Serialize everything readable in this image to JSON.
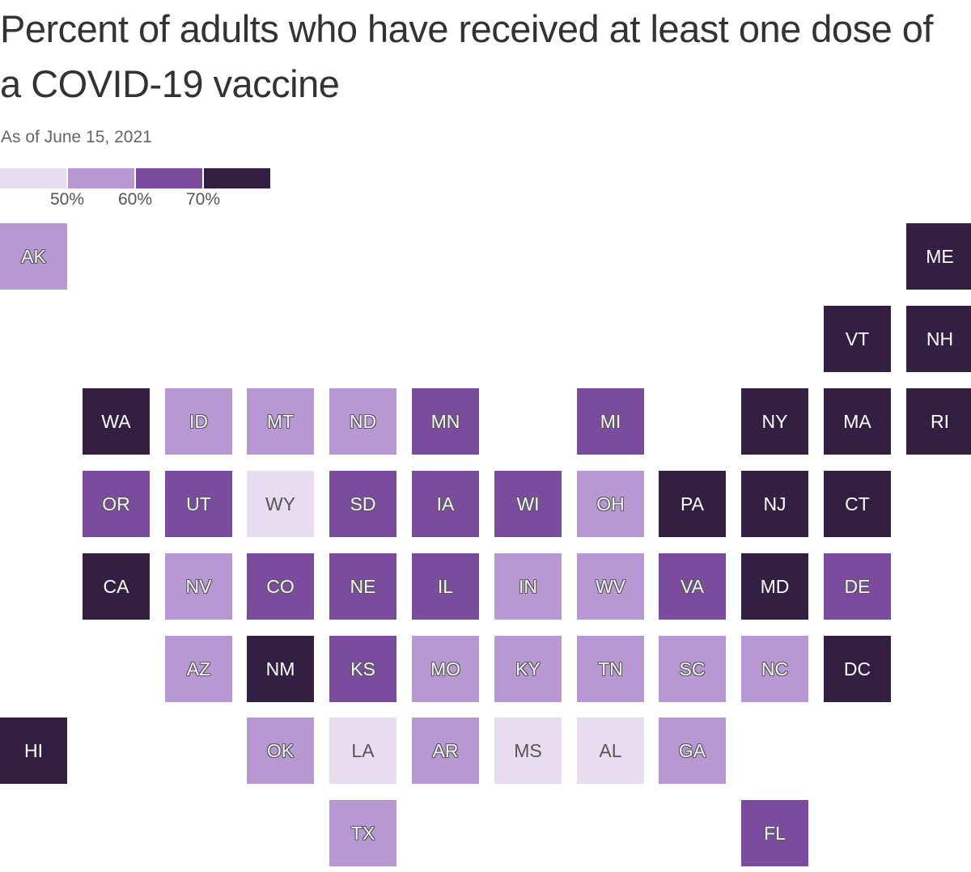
{
  "title": "Percent of adults who have received at least one dose of a COVID-19 vaccine",
  "subtitle": "As of June 15, 2021",
  "colors": {
    "bin1": "#e8dcf0",
    "bin2": "#b898d2",
    "bin3": "#7b4b9e",
    "bin4": "#331f42"
  },
  "legend": {
    "bins": [
      "bin1",
      "bin2",
      "bin3",
      "bin4"
    ],
    "ticks": [
      "50%",
      "60%",
      "70%"
    ]
  },
  "chart_data": {
    "type": "tile-map",
    "bins": [
      {
        "key": "bin1",
        "range": "below 50%"
      },
      {
        "key": "bin2",
        "range": "50% to 60%"
      },
      {
        "key": "bin3",
        "range": "60% to 70%"
      },
      {
        "key": "bin4",
        "range": "70% and above"
      }
    ],
    "states": [
      {
        "abbr": "AK",
        "col": 0,
        "row": 0,
        "bin": "bin2"
      },
      {
        "abbr": "ME",
        "col": 11,
        "row": 0,
        "bin": "bin4"
      },
      {
        "abbr": "VT",
        "col": 10,
        "row": 1,
        "bin": "bin4"
      },
      {
        "abbr": "NH",
        "col": 11,
        "row": 1,
        "bin": "bin4"
      },
      {
        "abbr": "WA",
        "col": 1,
        "row": 2,
        "bin": "bin4"
      },
      {
        "abbr": "ID",
        "col": 2,
        "row": 2,
        "bin": "bin2"
      },
      {
        "abbr": "MT",
        "col": 3,
        "row": 2,
        "bin": "bin2"
      },
      {
        "abbr": "ND",
        "col": 4,
        "row": 2,
        "bin": "bin2"
      },
      {
        "abbr": "MN",
        "col": 5,
        "row": 2,
        "bin": "bin3"
      },
      {
        "abbr": "MI",
        "col": 7,
        "row": 2,
        "bin": "bin3"
      },
      {
        "abbr": "NY",
        "col": 9,
        "row": 2,
        "bin": "bin4"
      },
      {
        "abbr": "MA",
        "col": 10,
        "row": 2,
        "bin": "bin4"
      },
      {
        "abbr": "RI",
        "col": 11,
        "row": 2,
        "bin": "bin4"
      },
      {
        "abbr": "OR",
        "col": 1,
        "row": 3,
        "bin": "bin3"
      },
      {
        "abbr": "UT",
        "col": 2,
        "row": 3,
        "bin": "bin3"
      },
      {
        "abbr": "WY",
        "col": 3,
        "row": 3,
        "bin": "bin1"
      },
      {
        "abbr": "SD",
        "col": 4,
        "row": 3,
        "bin": "bin3"
      },
      {
        "abbr": "IA",
        "col": 5,
        "row": 3,
        "bin": "bin3"
      },
      {
        "abbr": "WI",
        "col": 6,
        "row": 3,
        "bin": "bin3"
      },
      {
        "abbr": "OH",
        "col": 7,
        "row": 3,
        "bin": "bin2"
      },
      {
        "abbr": "PA",
        "col": 8,
        "row": 3,
        "bin": "bin4"
      },
      {
        "abbr": "NJ",
        "col": 9,
        "row": 3,
        "bin": "bin4"
      },
      {
        "abbr": "CT",
        "col": 10,
        "row": 3,
        "bin": "bin4"
      },
      {
        "abbr": "CA",
        "col": 1,
        "row": 4,
        "bin": "bin4"
      },
      {
        "abbr": "NV",
        "col": 2,
        "row": 4,
        "bin": "bin2"
      },
      {
        "abbr": "CO",
        "col": 3,
        "row": 4,
        "bin": "bin3"
      },
      {
        "abbr": "NE",
        "col": 4,
        "row": 4,
        "bin": "bin3"
      },
      {
        "abbr": "IL",
        "col": 5,
        "row": 4,
        "bin": "bin3"
      },
      {
        "abbr": "IN",
        "col": 6,
        "row": 4,
        "bin": "bin2"
      },
      {
        "abbr": "WV",
        "col": 7,
        "row": 4,
        "bin": "bin2"
      },
      {
        "abbr": "VA",
        "col": 8,
        "row": 4,
        "bin": "bin3"
      },
      {
        "abbr": "MD",
        "col": 9,
        "row": 4,
        "bin": "bin4"
      },
      {
        "abbr": "DE",
        "col": 10,
        "row": 4,
        "bin": "bin3"
      },
      {
        "abbr": "AZ",
        "col": 2,
        "row": 5,
        "bin": "bin2"
      },
      {
        "abbr": "NM",
        "col": 3,
        "row": 5,
        "bin": "bin4"
      },
      {
        "abbr": "KS",
        "col": 4,
        "row": 5,
        "bin": "bin3"
      },
      {
        "abbr": "MO",
        "col": 5,
        "row": 5,
        "bin": "bin2"
      },
      {
        "abbr": "KY",
        "col": 6,
        "row": 5,
        "bin": "bin2"
      },
      {
        "abbr": "TN",
        "col": 7,
        "row": 5,
        "bin": "bin2"
      },
      {
        "abbr": "SC",
        "col": 8,
        "row": 5,
        "bin": "bin2"
      },
      {
        "abbr": "NC",
        "col": 9,
        "row": 5,
        "bin": "bin2"
      },
      {
        "abbr": "DC",
        "col": 10,
        "row": 5,
        "bin": "bin4"
      },
      {
        "abbr": "HI",
        "col": 0,
        "row": 6,
        "bin": "bin4"
      },
      {
        "abbr": "OK",
        "col": 3,
        "row": 6,
        "bin": "bin2"
      },
      {
        "abbr": "LA",
        "col": 4,
        "row": 6,
        "bin": "bin1"
      },
      {
        "abbr": "AR",
        "col": 5,
        "row": 6,
        "bin": "bin2"
      },
      {
        "abbr": "MS",
        "col": 6,
        "row": 6,
        "bin": "bin1"
      },
      {
        "abbr": "AL",
        "col": 7,
        "row": 6,
        "bin": "bin1"
      },
      {
        "abbr": "GA",
        "col": 8,
        "row": 6,
        "bin": "bin2"
      },
      {
        "abbr": "TX",
        "col": 4,
        "row": 7,
        "bin": "bin2"
      },
      {
        "abbr": "FL",
        "col": 9,
        "row": 7,
        "bin": "bin3"
      }
    ]
  }
}
